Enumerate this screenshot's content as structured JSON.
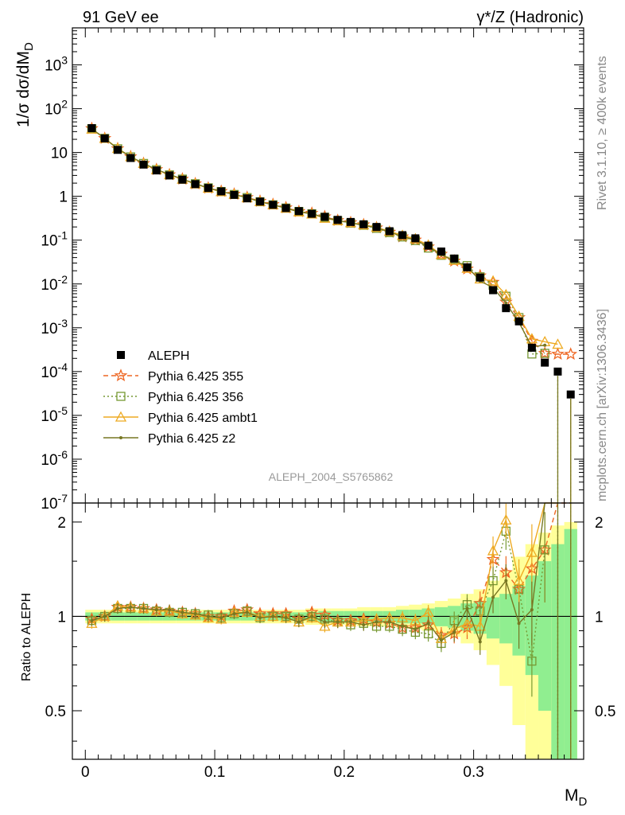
{
  "chart_data": {
    "type": "line",
    "title_left": "91 GeV ee",
    "title_right": "γ*/Z (Hadronic)",
    "analysis": "ALEPH_2004_S5765862",
    "side_labels": [
      "Rivet 3.1.10, ≥ 400k events",
      "mcplots.cern.ch [arXiv:1306.3436]"
    ],
    "xlabel": "M_D",
    "ylabel_top": "1/σ dσ/dM_D",
    "ylabel_bottom": "Ratio to ALEPH",
    "xlim": [
      -0.01,
      0.385
    ],
    "ylim_top": [
      1e-07,
      7000
    ],
    "ylim_bottom": [
      0.35,
      2.3
    ],
    "x_ticks": [
      "0",
      "0.1",
      "0.2",
      "0.3"
    ],
    "y_ticks_top": [
      "10^3",
      "10^2",
      "10",
      "1",
      "10^-1",
      "10^-2",
      "10^-3",
      "10^-4",
      "10^-5",
      "10^-6",
      "10^-7"
    ],
    "y_ticks_bottom": [
      "0.5",
      "1",
      "2"
    ],
    "colors": {
      "data": "#000000",
      "p355": "#ee6622",
      "p356": "#779933",
      "ambt1": "#eeaa22",
      "z2": "#777722",
      "band_inner": "#90ee90",
      "band_outer": "#ffff99"
    },
    "legend_entries": [
      "ALEPH",
      "Pythia 6.425 355",
      "Pythia 6.425 356",
      "Pythia 6.425 ambt1",
      "Pythia 6.425 z2"
    ],
    "x": [
      0.005,
      0.015,
      0.025,
      0.035,
      0.045,
      0.055,
      0.065,
      0.075,
      0.085,
      0.095,
      0.105,
      0.115,
      0.125,
      0.135,
      0.145,
      0.155,
      0.165,
      0.175,
      0.185,
      0.195,
      0.205,
      0.215,
      0.225,
      0.235,
      0.245,
      0.255,
      0.265,
      0.275,
      0.285,
      0.295,
      0.305,
      0.315,
      0.325,
      0.335,
      0.345,
      0.355,
      0.365,
      0.375
    ],
    "data_values": [
      36,
      21,
      11.5,
      7.5,
      5.3,
      3.9,
      3.0,
      2.4,
      1.9,
      1.55,
      1.3,
      1.08,
      0.9,
      0.76,
      0.64,
      0.54,
      0.46,
      0.4,
      0.34,
      0.29,
      0.26,
      0.23,
      0.2,
      0.16,
      0.13,
      0.11,
      0.075,
      0.055,
      0.038,
      0.024,
      0.014,
      0.0072,
      0.0028,
      0.0014,
      0.00035,
      0.00016,
      0.0001,
      3e-05
    ],
    "series": [
      {
        "name": "Pythia 6.425 355",
        "ratios": [
          0.98,
          1.0,
          1.07,
          1.07,
          1.06,
          1.05,
          1.04,
          1.03,
          1.02,
          1.0,
          1.0,
          1.04,
          1.05,
          1.02,
          1.02,
          1.02,
          0.98,
          1.03,
          1.01,
          0.97,
          0.97,
          0.98,
          0.96,
          0.95,
          0.92,
          0.92,
          0.94,
          0.87,
          0.88,
          0.92,
          1.1,
          1.52,
          1.38,
          1.22,
          1.42,
          1.63,
          2.5,
          8.3
        ]
      },
      {
        "name": "Pythia 6.425 356",
        "ratios": [
          0.97,
          1.0,
          1.06,
          1.06,
          1.06,
          1.04,
          1.03,
          1.03,
          1.02,
          1.01,
          0.99,
          1.02,
          1.04,
          0.99,
          1.0,
          1.0,
          0.98,
          1.0,
          0.98,
          0.96,
          0.94,
          0.95,
          0.93,
          0.93,
          0.91,
          0.89,
          0.88,
          0.82,
          0.97,
          1.09,
          1.04,
          1.3,
          1.87,
          1.22,
          0.72,
          1.63,
          0.0,
          0.0
        ]
      },
      {
        "name": "Pythia 6.425 ambt1",
        "ratios": [
          0.95,
          1.0,
          1.08,
          1.07,
          1.06,
          1.04,
          1.04,
          1.02,
          1.01,
          0.99,
          0.98,
          1.03,
          1.03,
          1.0,
          1.0,
          0.99,
          0.96,
          0.99,
          0.93,
          0.96,
          0.96,
          0.97,
          0.98,
          0.99,
          0.99,
          0.97,
          1.03,
          0.85,
          0.91,
          0.95,
          0.93,
          1.62,
          2.03,
          1.3,
          1.6,
          3.0,
          4.2,
          0.0
        ]
      },
      {
        "name": "Pythia 6.425 z2",
        "ratios": [
          0.97,
          1.0,
          1.06,
          1.07,
          1.06,
          1.05,
          1.05,
          1.03,
          1.02,
          1.0,
          0.99,
          1.02,
          1.03,
          0.99,
          1.0,
          0.99,
          0.96,
          1.0,
          0.96,
          0.96,
          0.96,
          0.94,
          0.96,
          0.96,
          0.93,
          0.91,
          0.95,
          0.84,
          0.89,
          1.06,
          0.83,
          1.15,
          1.3,
          0.95,
          1.05,
          2.5,
          0.0,
          0.0
        ]
      }
    ],
    "band_rel_inner": [
      0.03,
      0.03,
      0.03,
      0.03,
      0.03,
      0.03,
      0.03,
      0.03,
      0.03,
      0.03,
      0.03,
      0.03,
      0.03,
      0.03,
      0.03,
      0.03,
      0.03,
      0.03,
      0.04,
      0.04,
      0.04,
      0.04,
      0.04,
      0.04,
      0.05,
      0.05,
      0.06,
      0.07,
      0.08,
      0.1,
      0.12,
      0.15,
      0.18,
      0.25,
      0.35,
      0.5,
      0.7,
      0.9
    ],
    "band_rel_outer": [
      0.05,
      0.05,
      0.05,
      0.05,
      0.05,
      0.05,
      0.05,
      0.05,
      0.05,
      0.05,
      0.05,
      0.05,
      0.05,
      0.05,
      0.05,
      0.05,
      0.05,
      0.06,
      0.06,
      0.06,
      0.06,
      0.07,
      0.07,
      0.07,
      0.08,
      0.09,
      0.1,
      0.12,
      0.14,
      0.18,
      0.22,
      0.3,
      0.4,
      0.55,
      0.7,
      0.85,
      0.95,
      1.0
    ]
  }
}
